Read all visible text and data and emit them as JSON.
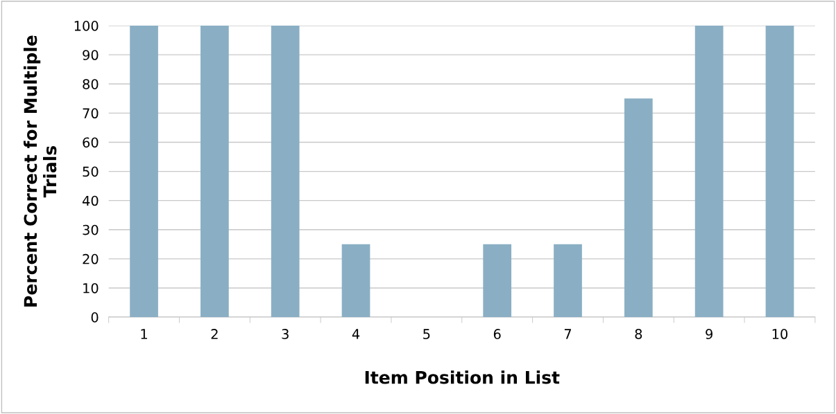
{
  "chart_data": {
    "type": "bar",
    "xlabel": "Item Position in List",
    "ylabel": "Percent Correct for Multiple\nTrials",
    "categories": [
      "1",
      "2",
      "3",
      "4",
      "5",
      "6",
      "7",
      "8",
      "9",
      "10"
    ],
    "values": [
      100,
      100,
      100,
      25,
      0,
      25,
      25,
      75,
      100,
      100
    ],
    "color": "#8aafc4",
    "ylim": [
      0,
      100
    ],
    "yticks": [
      0,
      10,
      20,
      30,
      40,
      50,
      60,
      70,
      80,
      90,
      100
    ],
    "grid": "y",
    "legend": false
  }
}
